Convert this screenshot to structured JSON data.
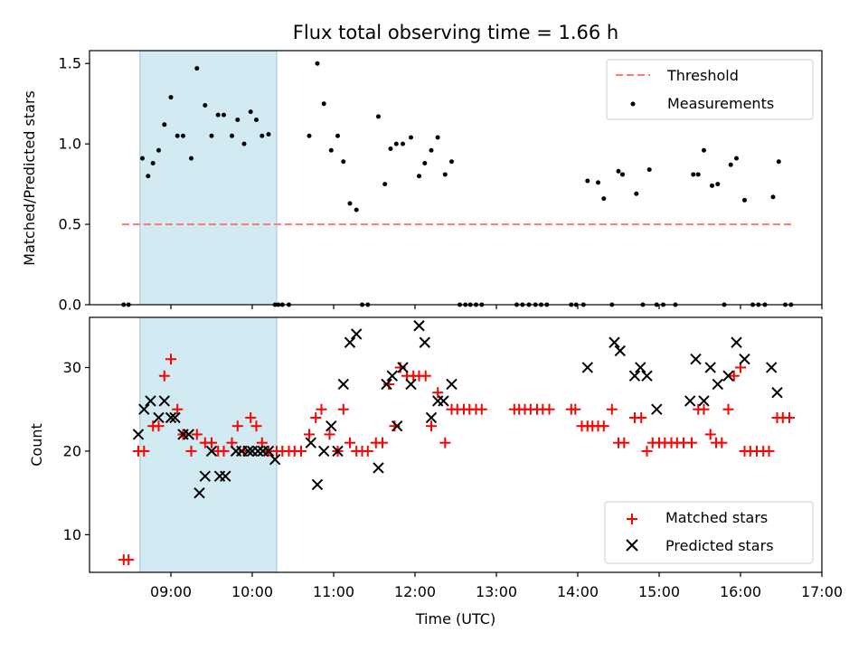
{
  "chart_data": [
    {
      "type": "scatter",
      "title": "Flux total observing time = 1.66 h",
      "xlabel": "",
      "ylabel": "Matched/Predicted stars",
      "x_unit": "hours UTC",
      "xlim": [
        8.0,
        17.0
      ],
      "ylim": [
        0.0,
        1.58
      ],
      "yticks": [
        0.0,
        0.5,
        1.0,
        1.5
      ],
      "ytick_labels": [
        "0.0",
        "0.5",
        "1.0",
        "1.5"
      ],
      "grid": false,
      "legend_placement": "upper right",
      "shaded_interval": {
        "start": 8.62,
        "end": 10.3,
        "color": "#add8e6"
      },
      "threshold": {
        "name": "Threshold",
        "value": 0.5,
        "x": [
          8.4,
          16.65
        ],
        "color": "#ff7777"
      },
      "series": [
        {
          "name": "Measurements",
          "color": "#000000",
          "marker": "dot",
          "x": [
            8.42,
            8.48,
            8.65,
            8.72,
            8.78,
            8.85,
            8.92,
            9.0,
            9.08,
            9.15,
            9.25,
            9.32,
            9.42,
            9.5,
            9.58,
            9.65,
            9.75,
            9.82,
            9.9,
            9.98,
            10.05,
            10.12,
            10.2,
            10.28,
            10.32,
            10.37,
            10.45,
            10.7,
            10.8,
            10.88,
            10.97,
            11.05,
            11.12,
            11.2,
            11.28,
            11.35,
            11.42,
            11.55,
            11.63,
            11.7,
            11.77,
            11.85,
            11.95,
            12.05,
            12.12,
            12.2,
            12.28,
            12.37,
            12.45,
            12.55,
            12.62,
            12.68,
            12.75,
            12.82,
            13.25,
            13.32,
            13.4,
            13.48,
            13.55,
            13.62,
            13.92,
            13.98,
            14.07,
            14.12,
            14.25,
            14.32,
            14.42,
            14.5,
            14.55,
            14.72,
            14.8,
            14.88,
            14.97,
            15.05,
            15.2,
            15.42,
            15.48,
            15.55,
            15.65,
            15.72,
            15.8,
            15.88,
            15.95,
            16.05,
            16.15,
            16.22,
            16.3,
            16.4,
            16.47,
            16.55,
            16.62
          ],
          "y": [
            0.0,
            0.0,
            0.91,
            0.8,
            0.88,
            0.96,
            1.12,
            1.29,
            1.05,
            1.05,
            0.91,
            1.47,
            1.24,
            1.05,
            1.18,
            1.18,
            1.05,
            1.15,
            1.0,
            1.2,
            1.15,
            1.05,
            1.06,
            0.0,
            0.0,
            0.0,
            0.0,
            1.05,
            1.5,
            1.25,
            0.96,
            1.05,
            0.89,
            0.63,
            0.59,
            0.0,
            0.0,
            1.17,
            0.75,
            0.97,
            1.0,
            1.0,
            1.04,
            0.8,
            0.88,
            0.96,
            1.04,
            0.81,
            0.89,
            0.0,
            0.0,
            0.0,
            0.0,
            0.0,
            0.0,
            0.0,
            0.0,
            0.0,
            0.0,
            0.0,
            0.0,
            0.0,
            0.0,
            0.77,
            0.76,
            0.66,
            0.0,
            0.83,
            0.81,
            0.69,
            0.0,
            0.84,
            0.0,
            0.0,
            0.0,
            0.81,
            0.81,
            0.96,
            0.74,
            0.75,
            0.0,
            0.87,
            0.91,
            0.65,
            0.0,
            0.0,
            0.0,
            0.67,
            0.89,
            0.0,
            0.0
          ]
        }
      ]
    },
    {
      "type": "scatter",
      "title": "",
      "xlabel": "Time (UTC)",
      "ylabel": "Count",
      "x_unit": "hours UTC",
      "xlim": [
        8.0,
        17.0
      ],
      "ylim": [
        5.5,
        36.0
      ],
      "yticks": [
        10,
        20,
        30
      ],
      "ytick_labels": [
        "10",
        "20",
        "30"
      ],
      "xticks": [
        9,
        10,
        11,
        12,
        13,
        14,
        15,
        16,
        17
      ],
      "xtick_labels": [
        "09:00",
        "10:00",
        "11:00",
        "12:00",
        "13:00",
        "14:00",
        "15:00",
        "16:00",
        "17:00"
      ],
      "grid": false,
      "legend_placement": "lower right",
      "shaded_interval": {
        "start": 8.62,
        "end": 10.3,
        "color": "#add8e6"
      },
      "series": [
        {
          "name": "Matched stars",
          "color": "#ff0000",
          "marker": "plus",
          "x": [
            8.42,
            8.48,
            8.6,
            8.67,
            8.78,
            8.85,
            8.92,
            9.0,
            9.08,
            9.15,
            9.25,
            9.32,
            9.42,
            9.5,
            9.58,
            9.65,
            9.75,
            9.82,
            9.9,
            9.98,
            10.05,
            10.12,
            10.2,
            10.3,
            10.37,
            10.45,
            10.52,
            10.6,
            10.7,
            10.78,
            10.85,
            10.95,
            11.05,
            11.12,
            11.2,
            11.28,
            11.35,
            11.42,
            11.52,
            11.6,
            11.68,
            11.75,
            11.82,
            11.9,
            11.98,
            12.05,
            12.13,
            12.2,
            12.28,
            12.37,
            12.45,
            12.52,
            12.6,
            12.67,
            12.75,
            12.82,
            13.22,
            13.28,
            13.35,
            13.42,
            13.5,
            13.57,
            13.65,
            13.92,
            13.97,
            14.05,
            14.12,
            14.18,
            14.25,
            14.32,
            14.42,
            14.5,
            14.57,
            14.7,
            14.78,
            14.85,
            14.92,
            15.0,
            15.07,
            15.15,
            15.22,
            15.3,
            15.4,
            15.48,
            15.55,
            15.63,
            15.7,
            15.77,
            15.85,
            15.92,
            16.0,
            16.05,
            16.12,
            16.2,
            16.28,
            16.35,
            16.45,
            16.52,
            16.6
          ],
          "y": [
            7,
            7,
            20,
            20,
            23,
            23,
            29,
            31,
            25,
            22,
            20,
            22,
            21,
            21,
            20,
            20,
            21,
            23,
            20,
            24,
            23,
            21,
            20,
            20,
            20,
            20,
            20,
            20,
            22,
            24,
            25,
            22,
            20,
            25,
            21,
            20,
            20,
            20,
            21,
            21,
            28,
            23,
            30,
            29,
            29,
            29,
            29,
            23,
            27,
            21,
            25,
            25,
            25,
            25,
            25,
            25,
            25,
            25,
            25,
            25,
            25,
            25,
            25,
            25,
            25,
            23,
            23,
            23,
            23,
            23,
            25,
            21,
            21,
            24,
            24,
            20,
            21,
            21,
            21,
            21,
            21,
            21,
            21,
            25,
            25,
            22,
            21,
            21,
            25,
            29,
            30,
            20,
            20,
            20,
            20,
            20,
            24,
            24,
            24
          ]
        },
        {
          "name": "Predicted stars",
          "color": "#000000",
          "marker": "x",
          "x": [
            8.6,
            8.67,
            8.75,
            8.85,
            8.92,
            9.0,
            9.05,
            9.15,
            9.22,
            9.35,
            9.42,
            9.5,
            9.6,
            9.67,
            9.8,
            9.87,
            9.95,
            10.0,
            10.07,
            10.13,
            10.2,
            10.28,
            10.72,
            10.8,
            10.88,
            10.97,
            11.05,
            11.12,
            11.2,
            11.28,
            11.55,
            11.65,
            11.72,
            11.78,
            11.85,
            11.95,
            12.05,
            12.12,
            12.2,
            12.28,
            12.35,
            12.45,
            14.12,
            14.45,
            14.52,
            14.7,
            14.77,
            14.85,
            14.97,
            15.38,
            15.45,
            15.55,
            15.63,
            15.72,
            15.85,
            15.95,
            16.05,
            16.38,
            16.45
          ],
          "y": [
            22,
            25,
            26,
            24,
            26,
            24,
            24,
            22,
            22,
            15,
            17,
            20,
            17,
            17,
            20,
            20,
            20,
            20,
            20,
            20,
            20,
            19,
            21,
            16,
            20,
            23,
            20,
            28,
            33,
            34,
            18,
            28,
            29,
            23,
            30,
            28,
            35,
            33,
            24,
            26,
            26,
            28,
            30,
            33,
            32,
            29,
            30,
            29,
            25,
            26,
            31,
            26,
            30,
            28,
            29,
            33,
            31,
            30,
            27
          ]
        }
      ]
    }
  ]
}
